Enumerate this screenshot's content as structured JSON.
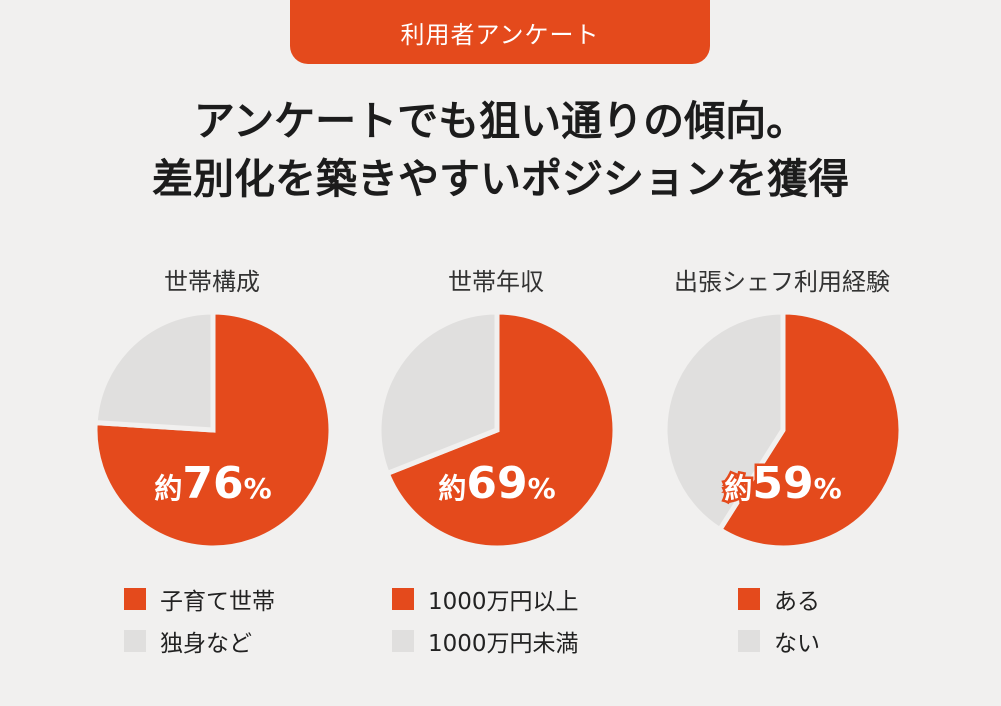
{
  "badge_label": "利用者アンケート",
  "headline": {
    "line1": "アンケートでも狙い通りの傾向。",
    "line2": "差別化を築きやすいポジションを獲得"
  },
  "colors": {
    "accent": "#e44a1c",
    "muted": "#e0dfde",
    "background": "#f1f0ef"
  },
  "chart_data": [
    {
      "type": "pie",
      "title": "世帯構成",
      "slices": [
        {
          "label": "子育て世帯",
          "value": 76,
          "color": "#e44a1c"
        },
        {
          "label": "独身など",
          "value": 24,
          "color": "#e0dfde"
        }
      ],
      "annotation": {
        "prefix": "約",
        "number": "76",
        "suffix": "%"
      }
    },
    {
      "type": "pie",
      "title": "世帯年収",
      "slices": [
        {
          "label": "1000万円以上",
          "value": 69,
          "color": "#e44a1c"
        },
        {
          "label": "1000万円未満",
          "value": 31,
          "color": "#e0dfde"
        }
      ],
      "annotation": {
        "prefix": "約",
        "number": "69",
        "suffix": "%"
      }
    },
    {
      "type": "pie",
      "title": "出張シェフ利用経験",
      "slices": [
        {
          "label": "ある",
          "value": 59,
          "color": "#e44a1c"
        },
        {
          "label": "ない",
          "value": 41,
          "color": "#e0dfde"
        }
      ],
      "annotation": {
        "prefix": "約",
        "number": "59",
        "suffix": "%"
      }
    }
  ]
}
